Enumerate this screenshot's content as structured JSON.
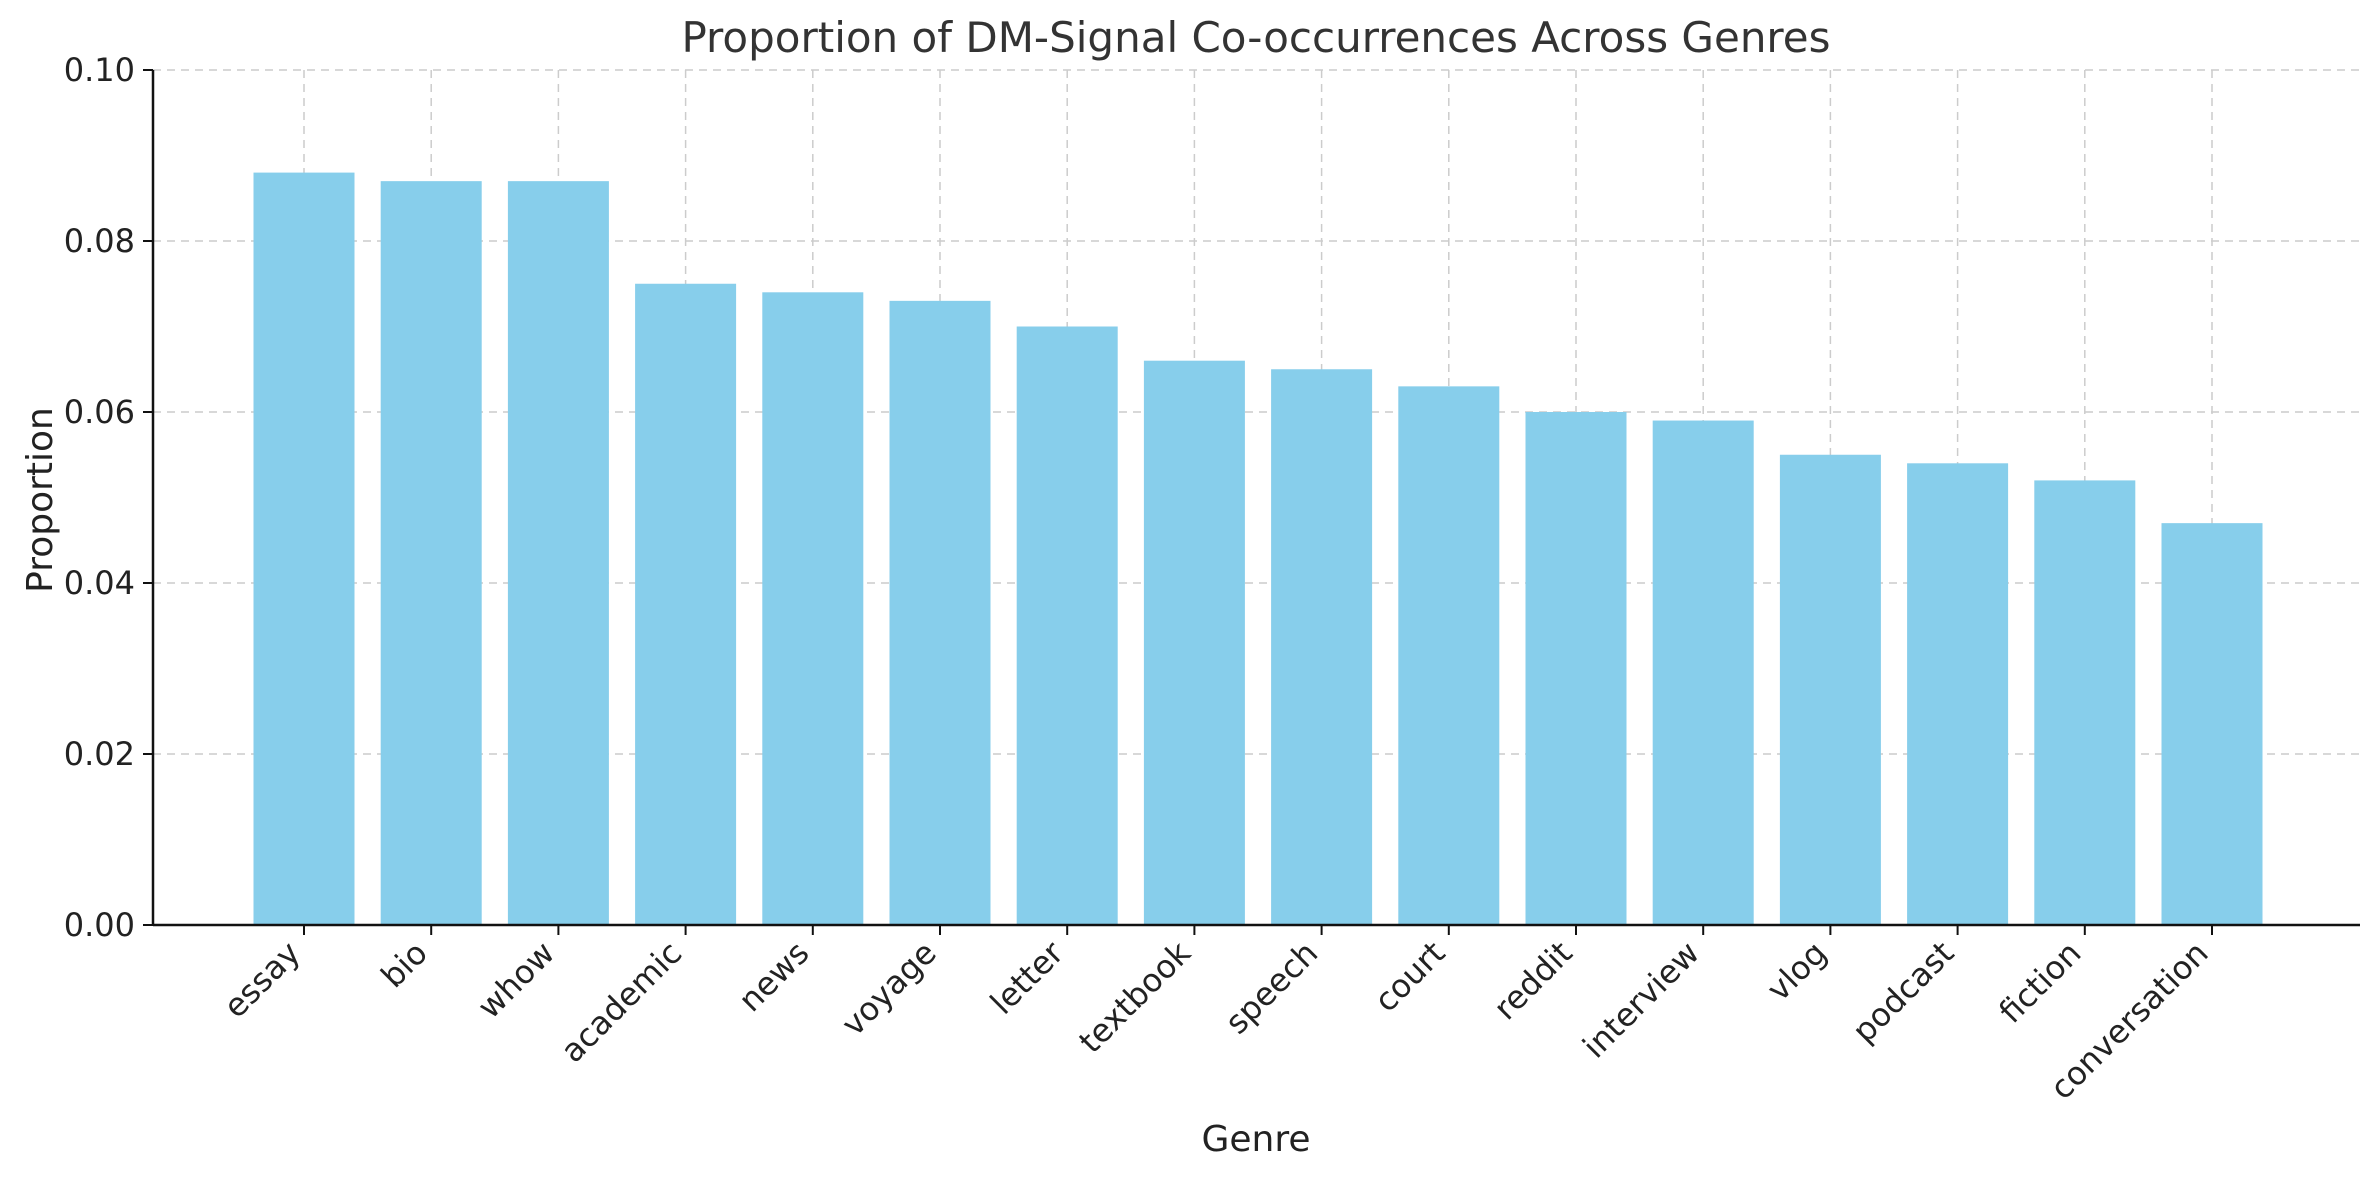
{
  "chart_data": {
    "type": "bar",
    "title": "Proportion of DM-Signal Co-occurrences Across Genres",
    "xlabel": "Genre",
    "ylabel": "Proportion",
    "categories": [
      "essay",
      "bio",
      "whow",
      "academic",
      "news",
      "voyage",
      "letter",
      "textbook",
      "speech",
      "court",
      "reddit",
      "interview",
      "vlog",
      "podcast",
      "fiction",
      "conversation"
    ],
    "values": [
      0.088,
      0.087,
      0.087,
      0.075,
      0.074,
      0.073,
      0.07,
      0.066,
      0.065,
      0.063,
      0.06,
      0.059,
      0.055,
      0.054,
      0.052,
      0.047
    ],
    "ylim": [
      0,
      0.1
    ],
    "yticks": [
      0.0,
      0.02,
      0.04,
      0.06,
      0.08,
      0.1
    ],
    "ytick_labels": [
      "0.00",
      "0.02",
      "0.04",
      "0.06",
      "0.08",
      "0.10"
    ],
    "grid": true,
    "bar_color": "#87ceeb"
  }
}
